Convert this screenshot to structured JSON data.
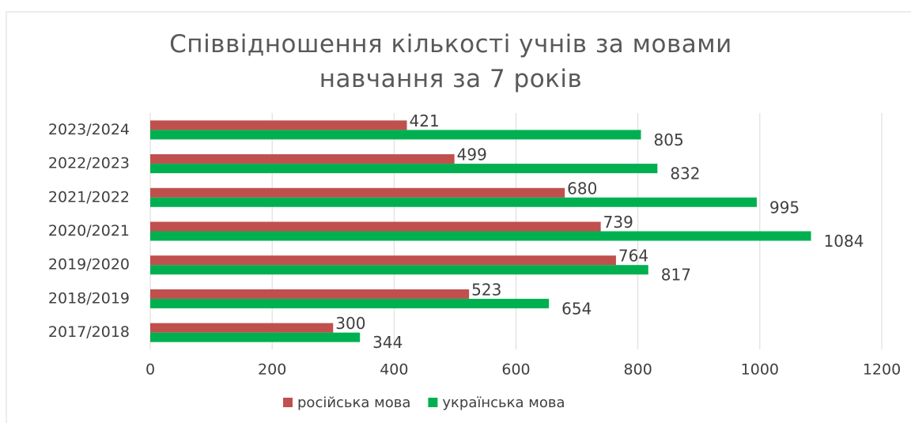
{
  "chart_data": {
    "type": "bar",
    "orientation": "horizontal",
    "title": "Співвідношення кількості учнів за мовами навчання за 7 років",
    "categories": [
      "2017/2018",
      "2018/2019",
      "2019/2020",
      "2020/2021",
      "2021/2022",
      "2022/2023",
      "2023/2024"
    ],
    "series": [
      {
        "name": "російська мова",
        "color": "#c0504d",
        "values": [
          300,
          523,
          764,
          739,
          680,
          499,
          421
        ]
      },
      {
        "name": "українська мова",
        "color": "#00b050",
        "values": [
          344,
          654,
          817,
          1084,
          995,
          832,
          805
        ]
      }
    ],
    "xlim": [
      0,
      1200
    ],
    "xticks": [
      0,
      200,
      400,
      600,
      800,
      1000,
      1200
    ],
    "grid": true,
    "legend": "bottom"
  }
}
